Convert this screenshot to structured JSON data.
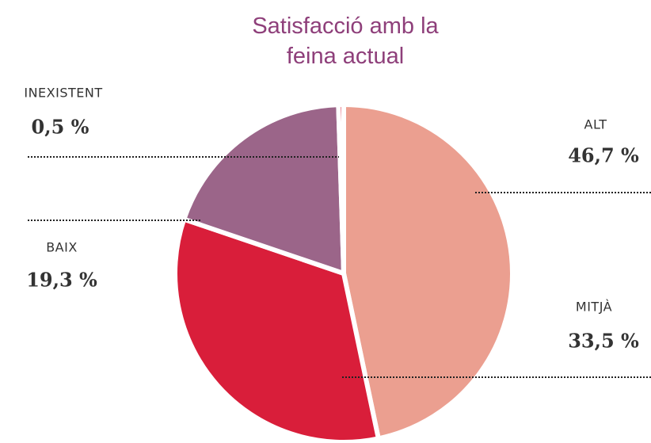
{
  "chart_data": {
    "type": "pie",
    "title": "Satisfacció amb la feina actual",
    "categories": [
      "ALT",
      "MITJÀ",
      "BAIX",
      "INEXISTENT"
    ],
    "values": [
      46.7,
      33.5,
      19.3,
      0.5
    ],
    "value_labels": [
      "46,7 %",
      "33,5 %",
      "19,3 %",
      "0,5 %"
    ],
    "colors": [
      "#eb9f90",
      "#d91e3a",
      "#9b6589",
      "#d91e3a"
    ]
  }
}
